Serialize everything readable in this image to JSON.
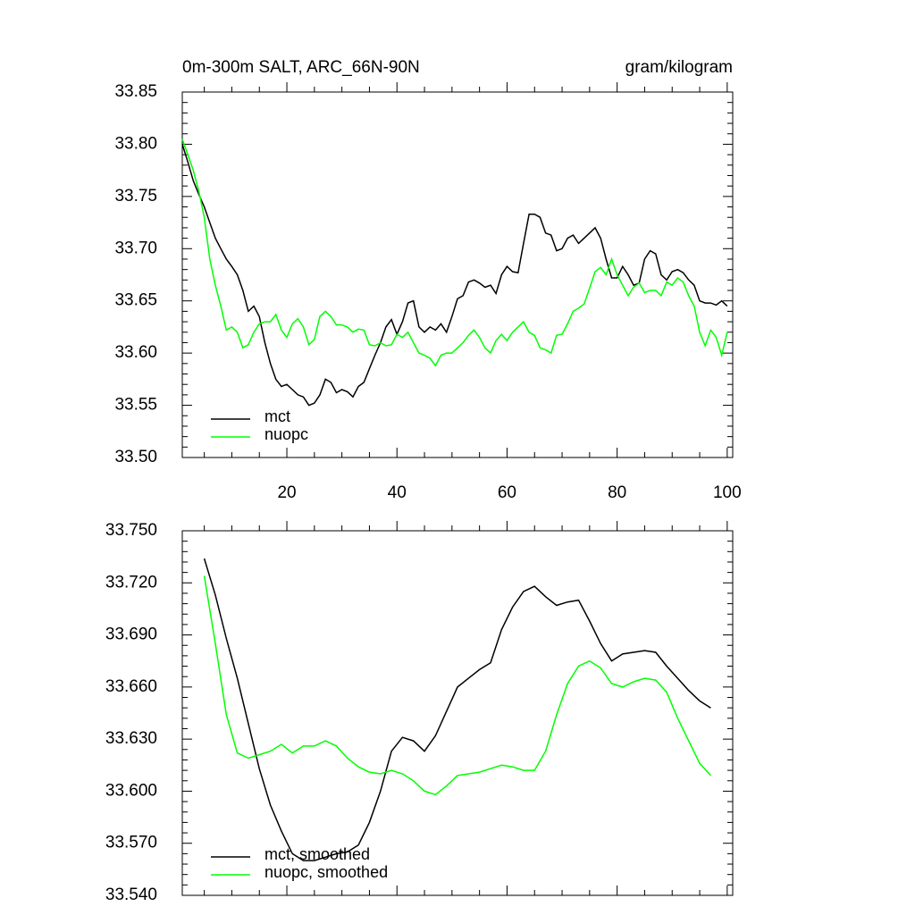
{
  "chart_data": [
    {
      "type": "line",
      "title": "0m-300m SALT, ARC_66N-90N",
      "title_right": "gram/kilogram",
      "x": [
        1,
        2,
        3,
        4,
        5,
        6,
        7,
        8,
        9,
        10,
        11,
        12,
        13,
        14,
        15,
        16,
        17,
        18,
        19,
        20,
        21,
        22,
        23,
        24,
        25,
        26,
        27,
        28,
        29,
        30,
        31,
        32,
        33,
        34,
        35,
        36,
        37,
        38,
        39,
        40,
        41,
        42,
        43,
        44,
        45,
        46,
        47,
        48,
        49,
        50,
        51,
        52,
        53,
        54,
        55,
        56,
        57,
        58,
        59,
        60,
        61,
        62,
        63,
        64,
        65,
        66,
        67,
        68,
        69,
        70,
        71,
        72,
        73,
        74,
        75,
        76,
        77,
        78,
        79,
        80,
        81,
        82,
        83,
        84,
        85,
        86,
        87,
        88,
        89,
        90,
        91,
        92,
        93,
        94,
        95,
        96,
        97,
        98,
        99,
        100
      ],
      "series": [
        {
          "name": "mct",
          "color": "#000000",
          "values": [
            33.8,
            33.783,
            33.765,
            33.752,
            33.74,
            33.725,
            33.71,
            33.7,
            33.69,
            33.683,
            33.675,
            33.66,
            33.64,
            33.645,
            33.635,
            33.61,
            33.59,
            33.575,
            33.568,
            33.57,
            33.565,
            33.56,
            33.558,
            33.55,
            33.552,
            33.56,
            33.575,
            33.572,
            33.562,
            33.565,
            33.563,
            33.558,
            33.568,
            33.572,
            33.585,
            33.598,
            33.61,
            33.625,
            33.632,
            33.618,
            33.63,
            33.648,
            33.65,
            33.625,
            33.62,
            33.625,
            33.622,
            33.628,
            33.62,
            33.635,
            33.652,
            33.655,
            33.668,
            33.67,
            33.667,
            33.663,
            33.665,
            33.657,
            33.675,
            33.683,
            33.678,
            33.677,
            33.705,
            33.733,
            33.733,
            33.73,
            33.715,
            33.713,
            33.698,
            33.7,
            33.71,
            33.713,
            33.705,
            33.71,
            33.715,
            33.72,
            33.71,
            33.69,
            33.672,
            33.672,
            33.683,
            33.675,
            33.665,
            33.667,
            33.69,
            33.698,
            33.695,
            33.675,
            33.67,
            33.678,
            33.68,
            33.677,
            33.67,
            33.665,
            33.65,
            33.648,
            33.648,
            33.646,
            33.65,
            33.645
          ]
        },
        {
          "name": "nuopc",
          "color": "#00ff00",
          "values": [
            33.805,
            33.79,
            33.775,
            33.755,
            33.73,
            33.69,
            33.665,
            33.645,
            33.622,
            33.625,
            33.62,
            33.605,
            33.608,
            33.62,
            33.628,
            33.63,
            33.63,
            33.637,
            33.622,
            33.615,
            33.628,
            33.633,
            33.625,
            33.608,
            33.613,
            33.635,
            33.64,
            33.635,
            33.627,
            33.627,
            33.625,
            33.62,
            33.623,
            33.622,
            33.608,
            33.607,
            33.61,
            33.607,
            33.608,
            33.618,
            33.615,
            33.62,
            33.61,
            33.6,
            33.598,
            33.595,
            33.588,
            33.598,
            33.6,
            33.6,
            33.605,
            33.61,
            33.617,
            33.622,
            33.615,
            33.605,
            33.6,
            33.612,
            33.618,
            33.612,
            33.62,
            33.625,
            33.63,
            33.62,
            33.617,
            33.605,
            33.603,
            33.6,
            33.617,
            33.618,
            33.628,
            33.64,
            33.643,
            33.647,
            33.662,
            33.678,
            33.682,
            33.675,
            33.69,
            33.675,
            33.665,
            33.655,
            33.663,
            33.667,
            33.658,
            33.66,
            33.66,
            33.655,
            33.668,
            33.665,
            33.672,
            33.668,
            33.655,
            33.645,
            33.62,
            33.607,
            33.622,
            33.615,
            33.598,
            33.62
          ]
        }
      ],
      "xlim": [
        1,
        101
      ],
      "xticks": [
        20,
        40,
        60,
        80,
        100
      ],
      "ylim": [
        33.5,
        33.85
      ],
      "yticks": [
        {
          "value": 33.5,
          "label": "33.50"
        },
        {
          "value": 33.55,
          "label": "33.55"
        },
        {
          "value": 33.6,
          "label": "33.60"
        },
        {
          "value": 33.65,
          "label": "33.65"
        },
        {
          "value": 33.7,
          "label": "33.70"
        },
        {
          "value": 33.75,
          "label": "33.75"
        },
        {
          "value": 33.8,
          "label": "33.80"
        },
        {
          "value": 33.85,
          "label": "33.85"
        }
      ]
    },
    {
      "type": "line",
      "x": [
        5,
        7,
        9,
        11,
        13,
        15,
        17,
        19,
        21,
        23,
        25,
        27,
        29,
        31,
        33,
        35,
        37,
        39,
        41,
        43,
        45,
        47,
        49,
        51,
        53,
        55,
        57,
        59,
        61,
        63,
        65,
        67,
        69,
        71,
        73,
        75,
        77,
        79,
        81,
        83,
        85,
        87,
        89,
        91,
        93,
        95,
        97
      ],
      "series": [
        {
          "name": "mct, smoothed",
          "color": "#000000",
          "values": [
            33.734,
            33.713,
            33.688,
            33.665,
            33.639,
            33.613,
            33.592,
            33.577,
            33.564,
            33.56,
            33.56,
            33.562,
            33.564,
            33.565,
            33.569,
            33.582,
            33.6,
            33.623,
            33.631,
            33.629,
            33.623,
            33.632,
            33.646,
            33.66,
            33.665,
            33.67,
            33.674,
            33.693,
            33.706,
            33.715,
            33.718,
            33.712,
            33.707,
            33.709,
            33.71,
            33.698,
            33.685,
            33.675,
            33.679,
            33.68,
            33.681,
            33.68,
            33.672,
            33.665,
            33.658,
            33.652,
            33.648
          ]
        },
        {
          "name": "nuopc, smoothed",
          "color": "#00ff00",
          "values": [
            33.724,
            33.685,
            33.644,
            33.622,
            33.619,
            33.621,
            33.623,
            33.627,
            33.622,
            33.626,
            33.626,
            33.629,
            33.626,
            33.619,
            33.614,
            33.611,
            33.61,
            33.612,
            33.61,
            33.606,
            33.6,
            33.598,
            33.603,
            33.609,
            33.61,
            33.611,
            33.613,
            33.615,
            33.614,
            33.612,
            33.612,
            33.623,
            33.644,
            33.662,
            33.672,
            33.675,
            33.671,
            33.662,
            33.66,
            33.663,
            33.665,
            33.664,
            33.657,
            33.642,
            33.629,
            33.616,
            33.609
          ]
        }
      ],
      "xlim": [
        1,
        101
      ],
      "ylim": [
        33.54,
        33.75
      ],
      "yticks": [
        {
          "value": 33.54,
          "label": "33.540"
        },
        {
          "value": 33.57,
          "label": "33.570"
        },
        {
          "value": 33.6,
          "label": "33.600"
        },
        {
          "value": 33.63,
          "label": "33.630"
        },
        {
          "value": 33.66,
          "label": "33.660"
        },
        {
          "value": 33.69,
          "label": "33.690"
        },
        {
          "value": 33.72,
          "label": "33.720"
        },
        {
          "value": 33.75,
          "label": "33.750"
        }
      ]
    }
  ]
}
